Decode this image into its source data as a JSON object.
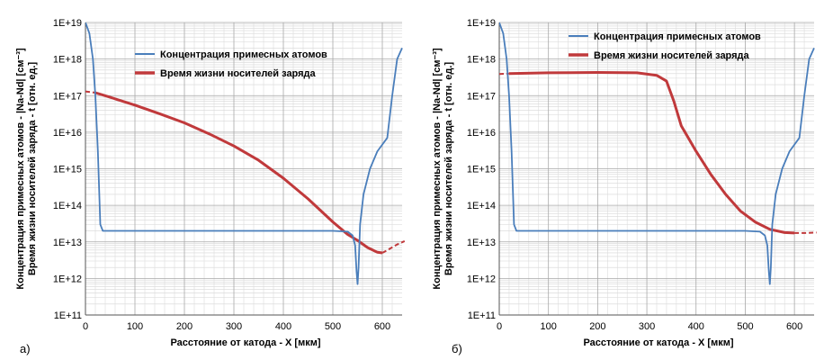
{
  "chart_data": [
    {
      "type": "line",
      "panel_label": "а)",
      "xlabel": "Расстояние от катода - X [мкм]",
      "ylabel_line1": "Концентрация примесных атомов - |Na-Nd| [см⁻³]",
      "ylabel_line2": "Время жизни носителей заряда - t [отн. ед.]",
      "xlim": [
        0,
        640
      ],
      "ylim_exp": [
        11,
        19
      ],
      "yscale": "log",
      "xticks": [
        0,
        100,
        200,
        300,
        400,
        500,
        600
      ],
      "yticks": [
        "1E+11",
        "1E+12",
        "1E+13",
        "1E+14",
        "1E+15",
        "1E+16",
        "1E+17",
        "1E+18",
        "1E+19"
      ],
      "grid": true,
      "legend_position": "top-center",
      "series": [
        {
          "name": "Концентрация примесных атомов",
          "color": "#4a7ebb",
          "points": [
            [
              0,
              1e+19
            ],
            [
              8,
              5e+18
            ],
            [
              15,
              1e+18
            ],
            [
              20,
              1e+17
            ],
            [
              25,
              3000000000000000.0
            ],
            [
              30,
              30000000000000.0
            ],
            [
              35,
              20000000000000.0
            ],
            [
              100,
              20000000000000.0
            ],
            [
              200,
              20000000000000.0
            ],
            [
              300,
              20000000000000.0
            ],
            [
              400,
              20000000000000.0
            ],
            [
              500,
              20000000000000.0
            ],
            [
              530,
              19000000000000.0
            ],
            [
              540,
              15000000000000.0
            ],
            [
              545,
              8000000000000.0
            ],
            [
              548,
              1500000000000.0
            ],
            [
              550,
              700000000000.0
            ],
            [
              552,
              2000000000000.0
            ],
            [
              555,
              30000000000000.0
            ],
            [
              562,
              200000000000000.0
            ],
            [
              575,
              1000000000000000.0
            ],
            [
              590,
              3000000000000000.0
            ],
            [
              610,
              7000000000000000.0
            ],
            [
              620,
              1e+17
            ],
            [
              630,
              1e+18
            ],
            [
              640,
              2e+18
            ]
          ]
        },
        {
          "name": "Время жизни носителей заряда",
          "color": "#c0393b",
          "points": [
            [
              20,
              1.2e+17
            ],
            [
              50,
              9e+16
            ],
            [
              100,
              5.5e+16
            ],
            [
              150,
              3.2e+16
            ],
            [
              200,
              1.8e+16
            ],
            [
              250,
              9000000000000000.0
            ],
            [
              300,
              4200000000000000.0
            ],
            [
              350,
              1700000000000000.0
            ],
            [
              400,
              550000000000000.0
            ],
            [
              450,
              150000000000000.0
            ],
            [
              500,
              35000000000000.0
            ],
            [
              530,
              16000000000000.0
            ],
            [
              550,
              11000000000000.0
            ],
            [
              570,
              7000000000000.0
            ],
            [
              590,
              5200000000000.0
            ],
            [
              600,
              5000000000000.0
            ]
          ],
          "dashed_tail": [
            [
              0,
              1.3e+17
            ],
            [
              20,
              1.2e+17
            ],
            [
              600,
              5000000000000.0
            ],
            [
              615,
              6500000000000.0
            ],
            [
              630,
              8500000000000.0
            ],
            [
              645,
              10500000000000.0
            ]
          ]
        }
      ]
    },
    {
      "type": "line",
      "panel_label": "б)",
      "xlabel": "Расстояние от катода - X [мкм]",
      "ylabel_line1": "Концентрация примесных атомов - |Na-Nd| [см⁻³]",
      "ylabel_line2": "Время жизни носителей заряда - t [отн. ед.]",
      "xlim": [
        0,
        640
      ],
      "ylim_exp": [
        11,
        19
      ],
      "yscale": "log",
      "xticks": [
        0,
        100,
        200,
        300,
        400,
        500,
        600
      ],
      "yticks": [
        "1E+11",
        "1E+12",
        "1E+13",
        "1E+14",
        "1E+15",
        "1E+16",
        "1E+17",
        "1E+18",
        "1E+19"
      ],
      "grid": true,
      "legend_position": "top-right",
      "series": [
        {
          "name": "Концентрация примесных атомов",
          "color": "#4a7ebb",
          "points": [
            [
              0,
              1e+19
            ],
            [
              8,
              5e+18
            ],
            [
              15,
              1e+18
            ],
            [
              20,
              1e+17
            ],
            [
              25,
              3000000000000000.0
            ],
            [
              30,
              30000000000000.0
            ],
            [
              35,
              20000000000000.0
            ],
            [
              100,
              20000000000000.0
            ],
            [
              200,
              20000000000000.0
            ],
            [
              300,
              20000000000000.0
            ],
            [
              400,
              20000000000000.0
            ],
            [
              500,
              20000000000000.0
            ],
            [
              530,
              19000000000000.0
            ],
            [
              540,
              15000000000000.0
            ],
            [
              545,
              8000000000000.0
            ],
            [
              548,
              1500000000000.0
            ],
            [
              550,
              700000000000.0
            ],
            [
              552,
              2000000000000.0
            ],
            [
              555,
              30000000000000.0
            ],
            [
              562,
              200000000000000.0
            ],
            [
              575,
              1000000000000000.0
            ],
            [
              590,
              3000000000000000.0
            ],
            [
              610,
              7000000000000000.0
            ],
            [
              620,
              1e+17
            ],
            [
              630,
              1e+18
            ],
            [
              640,
              2e+18
            ]
          ]
        },
        {
          "name": "Время жизни носителей заряда",
          "color": "#c0393b",
          "points": [
            [
              20,
              4e+17
            ],
            [
              100,
              4.2e+17
            ],
            [
              200,
              4.3e+17
            ],
            [
              280,
              4.2e+17
            ],
            [
              320,
              3.6e+17
            ],
            [
              340,
              2.5e+17
            ],
            [
              355,
              7e+16
            ],
            [
              370,
              1.5e+16
            ],
            [
              400,
              3000000000000000.0
            ],
            [
              430,
              700000000000000.0
            ],
            [
              460,
              200000000000000.0
            ],
            [
              490,
              70000000000000.0
            ],
            [
              520,
              35000000000000.0
            ],
            [
              550,
              22000000000000.0
            ],
            [
              580,
              18000000000000.0
            ],
            [
              600,
              17500000000000.0
            ]
          ],
          "dashed_tail": [
            [
              0,
              3.9e+17
            ],
            [
              20,
              4e+17
            ],
            [
              600,
              17500000000000.0
            ],
            [
              620,
              17500000000000.0
            ],
            [
              645,
              18000000000000.0
            ]
          ]
        }
      ]
    }
  ]
}
